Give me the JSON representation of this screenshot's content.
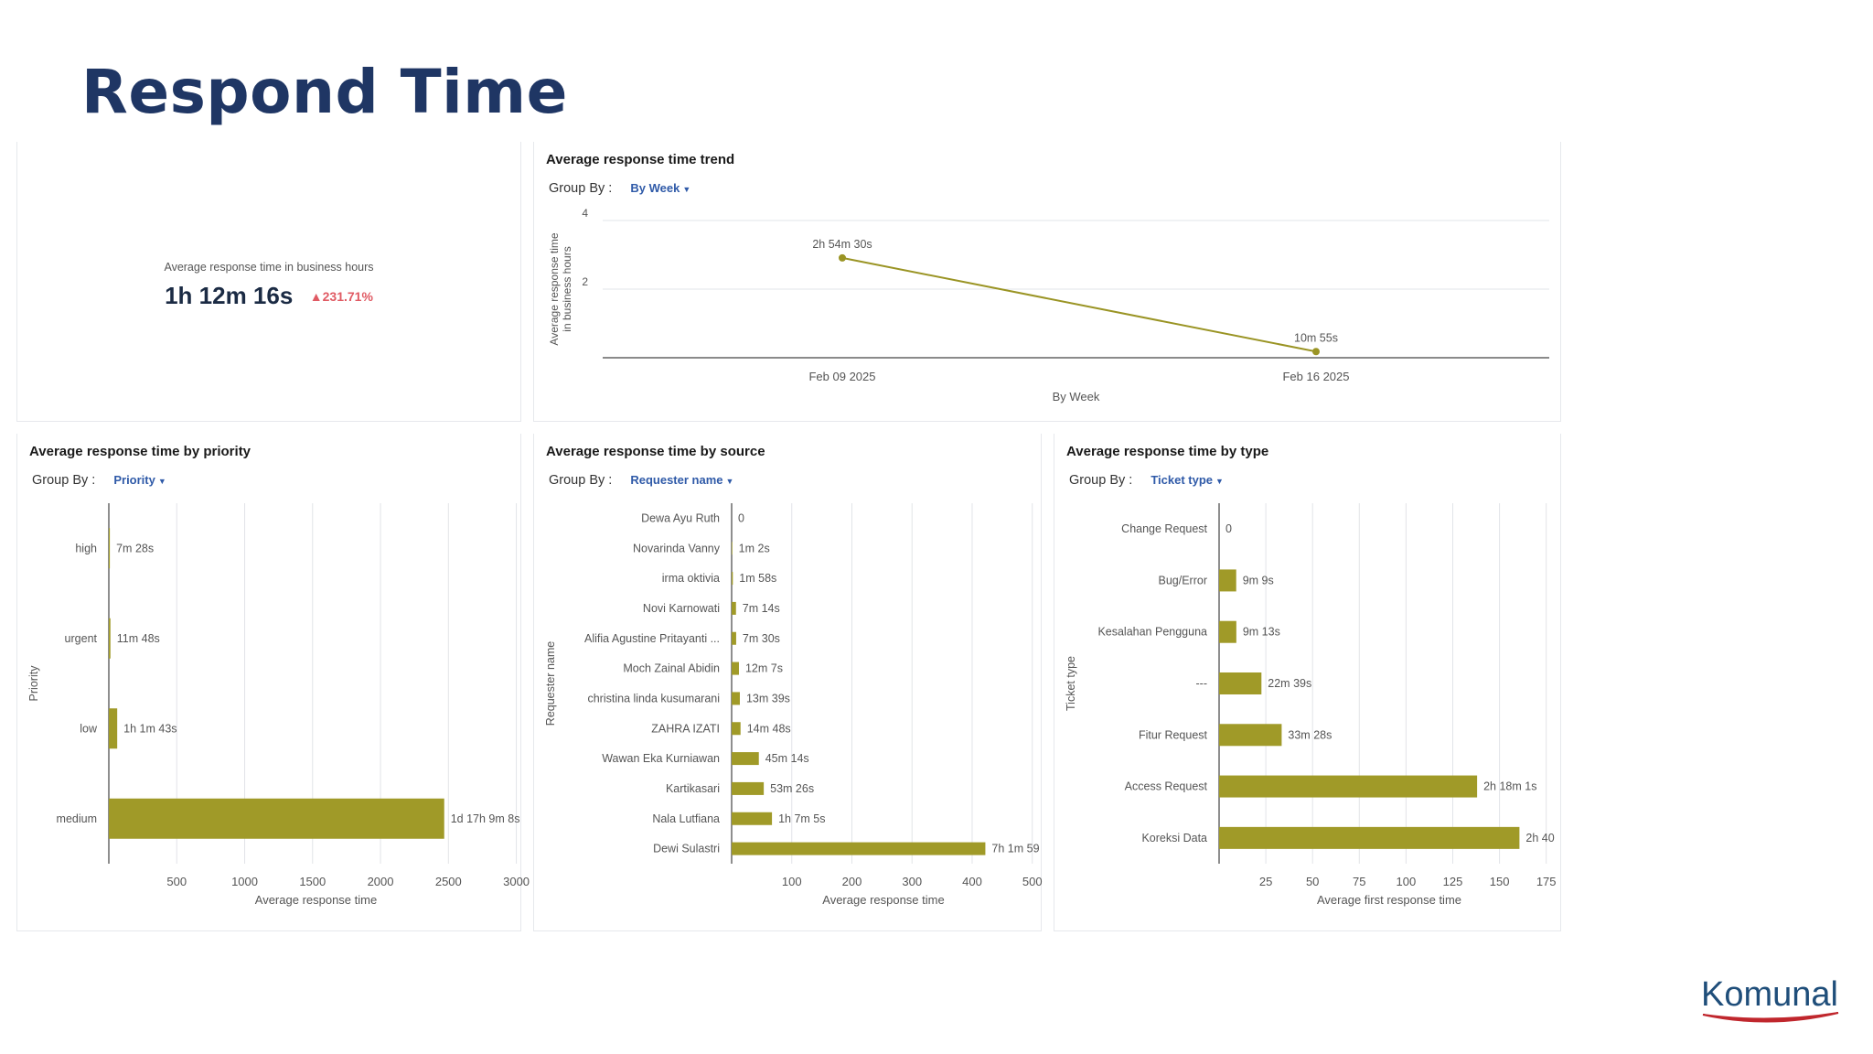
{
  "page": {
    "title": "Respond Time",
    "logo_text": "Komunal"
  },
  "kpi": {
    "label": "Average response time in business hours",
    "value": "1h 12m 16s",
    "delta": "231.71%"
  },
  "colors": {
    "bar": "#a09a28",
    "line": "#9a9424",
    "title": "#1f3664",
    "link": "#2f5aa8",
    "delta": "#e05a63",
    "logo": "#1f4e7a",
    "logo_swoosh": "#c0272d"
  },
  "chart_data": [
    {
      "type": "line",
      "title": "Average response time trend",
      "groupby_label": "Group By :",
      "groupby_value": "By Week",
      "xlabel": "By Week",
      "ylabel_line1": "Average response time",
      "ylabel_line2": "in business hours",
      "x": [
        "Feb 09 2025",
        "Feb 16 2025"
      ],
      "values": [
        2.91,
        0.18
      ],
      "point_labels": [
        "2h 54m 30s",
        "10m 55s"
      ],
      "ylim": [
        0,
        4
      ],
      "yticks": [
        2,
        4
      ],
      "grid": true
    },
    {
      "type": "bar",
      "orientation": "horizontal",
      "title": "Average response time by priority",
      "groupby_label": "Group By :",
      "groupby_value": "Priority",
      "xlabel": "Average response time",
      "ylabel": "Priority",
      "categories": [
        "high",
        "urgent",
        "low",
        "medium"
      ],
      "values": [
        7.47,
        11.8,
        61.7,
        2469.1
      ],
      "value_labels": [
        "7m 28s",
        "11m 48s",
        "1h 1m 43s",
        "1d 17h 9m 8s"
      ],
      "xlim": [
        0,
        3050
      ],
      "xticks": [
        500,
        1000,
        1500,
        2000,
        2500,
        3000
      ]
    },
    {
      "type": "bar",
      "orientation": "horizontal",
      "title": "Average response time by source",
      "groupby_label": "Group By :",
      "groupby_value": "Requester name",
      "xlabel": "Average response time",
      "ylabel": "Requester name",
      "categories": [
        "Dewa Ayu Ruth",
        "Novarinda Vanny",
        "irma oktivia",
        "Novi Karnowati",
        "Alifia Agustine Pritayanti ...",
        "Moch Zainal Abidin",
        "christina linda kusumarani",
        "ZAHRA IZATI",
        "Wawan Eka Kurniawan",
        "Kartikasari",
        "Nala Lutfiana",
        "Dewi Sulastri"
      ],
      "values": [
        0,
        1.03,
        1.97,
        7.23,
        7.5,
        12.12,
        13.65,
        14.8,
        45.23,
        53.43,
        67.08,
        421.98
      ],
      "value_labels": [
        "0",
        "1m 2s",
        "1m 58s",
        "7m 14s",
        "7m 30s",
        "12m 7s",
        "13m 39s",
        "14m 48s",
        "45m 14s",
        "53m 26s",
        "1h 7m 5s",
        "7h 1m 59"
      ],
      "xlim": [
        0,
        505
      ],
      "xticks": [
        100,
        200,
        300,
        400,
        500
      ]
    },
    {
      "type": "bar",
      "orientation": "horizontal",
      "title": "Average response time by type",
      "groupby_label": "Group By :",
      "groupby_value": "Ticket type",
      "xlabel": "Average first response time",
      "ylabel": "Ticket type",
      "categories": [
        "Change Request",
        "Bug/Error",
        "Kesalahan Pengguna",
        "---",
        "Fitur Request",
        "Access Request",
        "Koreksi Data"
      ],
      "values": [
        0,
        9.15,
        9.22,
        22.65,
        33.47,
        138.02,
        160.67
      ],
      "value_labels": [
        "0",
        "9m 9s",
        "9m 13s",
        "22m 39s",
        "33m 28s",
        "2h 18m 1s",
        "2h 40"
      ],
      "xlim": [
        0,
        182
      ],
      "xticks": [
        25,
        50,
        75,
        100,
        125,
        150,
        175
      ]
    }
  ]
}
